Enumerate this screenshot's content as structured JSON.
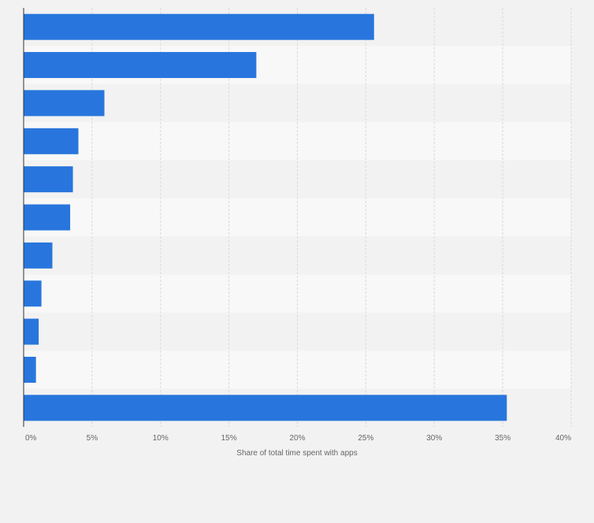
{
  "chart_data": {
    "type": "bar",
    "orientation": "horizontal",
    "categories": [
      "",
      "",
      "",
      "",
      "",
      "",
      "",
      "",
      "",
      "",
      ""
    ],
    "values": [
      25.6,
      17.0,
      5.9,
      4.0,
      3.6,
      3.4,
      2.1,
      1.3,
      1.1,
      0.9,
      35.3
    ],
    "xlabel": "Share of total time spent with apps",
    "ylabel": "",
    "xlim": [
      0,
      40
    ],
    "x_ticks": [
      0,
      5,
      10,
      15,
      20,
      25,
      30,
      35,
      40
    ],
    "x_tick_labels": [
      "0%",
      "5%",
      "10%",
      "15%",
      "20%",
      "25%",
      "30%",
      "35%",
      "40%"
    ],
    "grid": true,
    "colors": {
      "bar": "#2876dd",
      "background": "#f2f2f2",
      "band_dark": "#f2f2f2",
      "band_light": "#f8f8f8",
      "grid": "#d9d9d9",
      "axis": "#333333",
      "text": "#666666"
    }
  }
}
